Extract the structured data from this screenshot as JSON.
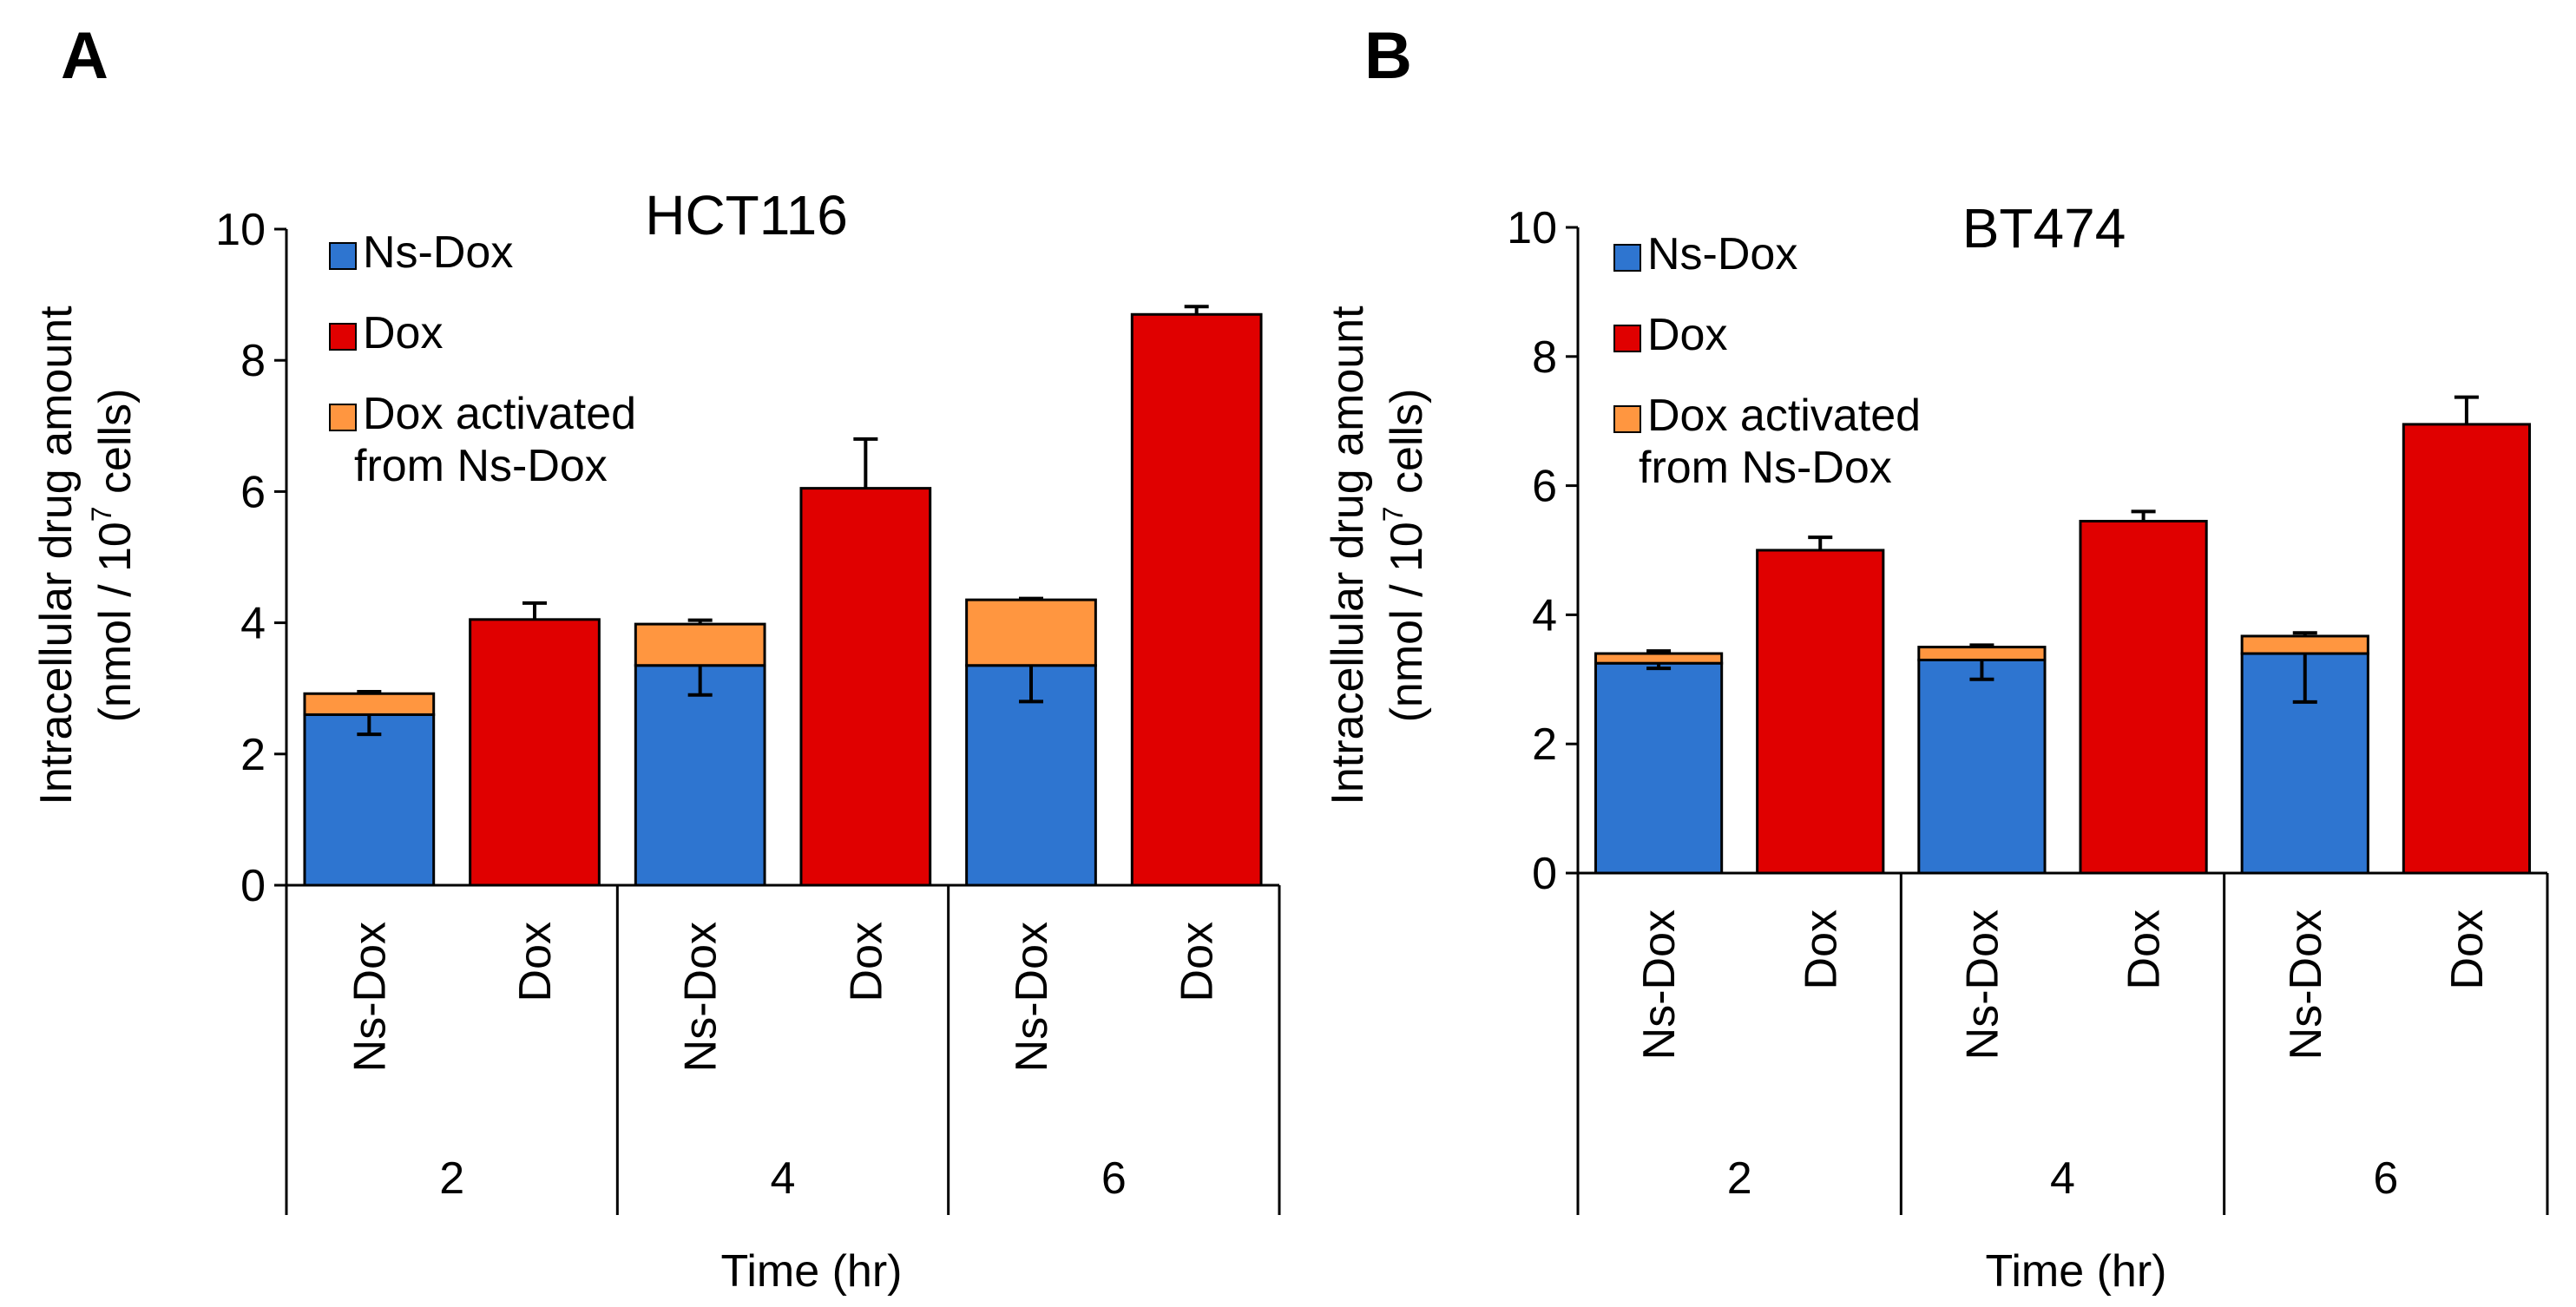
{
  "colors": {
    "ns_dox": "#2e75d0",
    "dox": "#e00000",
    "activated": "#ff9640",
    "border": "#000000"
  },
  "chart_data": [
    {
      "panel": "A",
      "type": "bar",
      "stacked": true,
      "title": "HCT116",
      "ylabel_line1": "Intracellular drug amount",
      "ylabel_line2_prefix": "(nmol / 10",
      "ylabel_line2_sup": "7",
      "ylabel_line2_suffix": " cells)",
      "xlabel": "Time (hr)",
      "ylim": [
        0,
        10
      ],
      "yticks": [
        "0",
        "2",
        "4",
        "6",
        "8",
        "10"
      ],
      "groups": [
        "2",
        "4",
        "6"
      ],
      "categories": [
        "Ns-Dox",
        "Dox",
        "Ns-Dox",
        "Dox",
        "Ns-Dox",
        "Dox"
      ],
      "legend": [
        "Ns-Dox",
        "Dox",
        "Dox activated",
        "from Ns-Dox"
      ],
      "series": [
        {
          "name": "Ns-Dox",
          "values": [
            2.6,
            0,
            3.35,
            0,
            3.35,
            0
          ],
          "error": [
            0.3,
            0,
            0.45,
            0,
            0.55,
            0
          ]
        },
        {
          "name": "Dox",
          "values": [
            0,
            4.05,
            0,
            6.05,
            0,
            8.7
          ],
          "error": [
            0,
            0.25,
            0,
            0.75,
            0,
            0.12
          ]
        },
        {
          "name": "Dox activated from Ns-Dox",
          "values": [
            0.32,
            0,
            0.63,
            0,
            1.0,
            0
          ],
          "error": [
            0.03,
            0,
            0.06,
            0,
            0.02,
            0
          ]
        }
      ]
    },
    {
      "panel": "B",
      "type": "bar",
      "stacked": true,
      "title": "BT474",
      "ylabel_line1": "Intracellular drug amount",
      "ylabel_line2_prefix": "(nmol / 10",
      "ylabel_line2_sup": "7",
      "ylabel_line2_suffix": " cells)",
      "xlabel": "Time (hr)",
      "ylim": [
        0,
        10
      ],
      "yticks": [
        "0",
        "2",
        "4",
        "6",
        "8",
        "10"
      ],
      "groups": [
        "2",
        "4",
        "6"
      ],
      "categories": [
        "Ns-Dox",
        "Dox",
        "Ns-Dox",
        "Dox",
        "Ns-Dox",
        "Dox"
      ],
      "legend": [
        "Ns-Dox",
        "Dox",
        "Dox activated",
        "from Ns-Dox"
      ],
      "series": [
        {
          "name": "Ns-Dox",
          "values": [
            3.25,
            0,
            3.3,
            0,
            3.4,
            0
          ],
          "error": [
            0.08,
            0,
            0.3,
            0,
            0.75,
            0
          ]
        },
        {
          "name": "Dox",
          "values": [
            0,
            5.0,
            0,
            5.45,
            0,
            6.95
          ],
          "error": [
            0,
            0.2,
            0,
            0.15,
            0,
            0.42
          ]
        },
        {
          "name": "Dox activated from Ns-Dox",
          "values": [
            0.15,
            0,
            0.2,
            0,
            0.27,
            0
          ],
          "error": [
            0.04,
            0,
            0.03,
            0,
            0.05,
            0
          ]
        }
      ]
    }
  ]
}
